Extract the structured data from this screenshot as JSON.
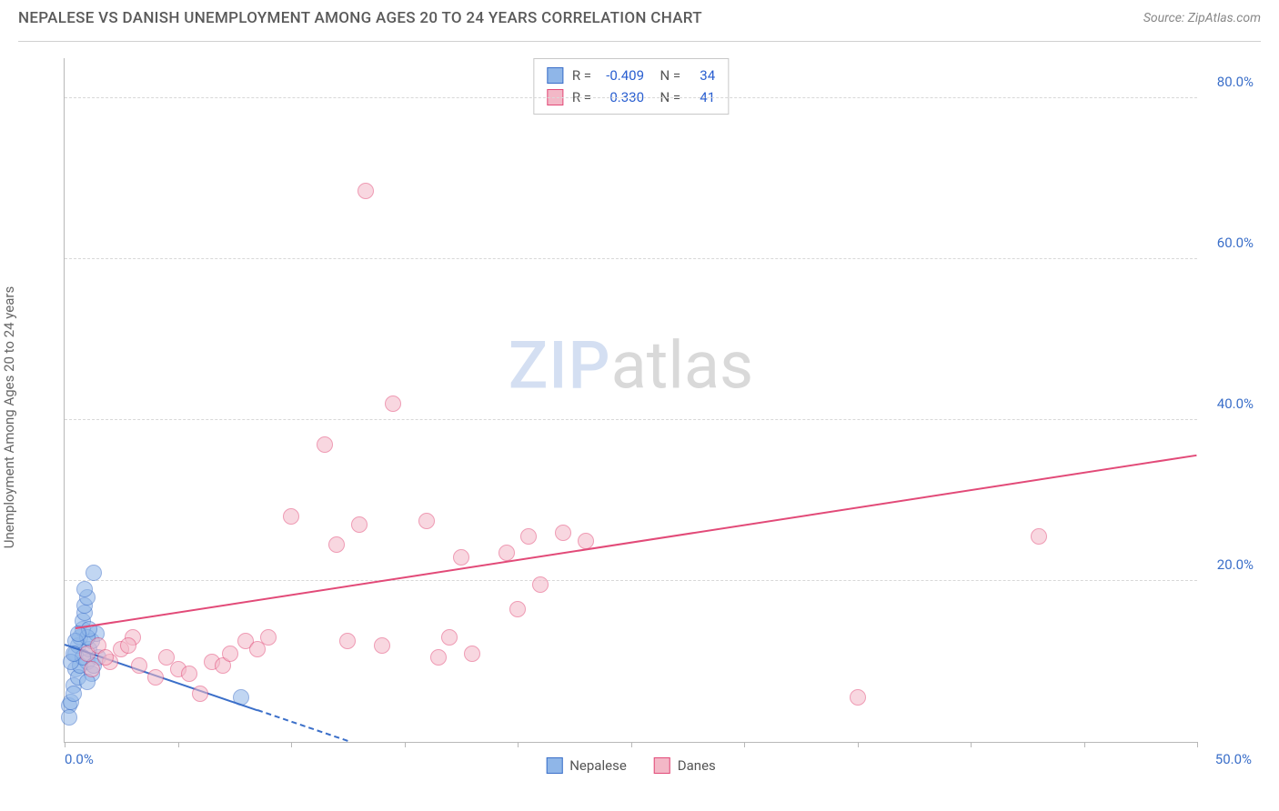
{
  "title": "NEPALESE VS DANISH UNEMPLOYMENT AMONG AGES 20 TO 24 YEARS CORRELATION CHART",
  "source": "Source: ZipAtlas.com",
  "ylabel": "Unemployment Among Ages 20 to 24 years",
  "watermark": {
    "bold": "ZIP",
    "rest": "atlas"
  },
  "chart": {
    "type": "scatter",
    "background_color": "#ffffff",
    "grid_color": "#d8d8d8",
    "axis_color": "#b8b8b8",
    "text_color": "#5a5a5a",
    "value_color": "#2a5fd0",
    "xlim": [
      0,
      50
    ],
    "ylim": [
      0,
      85
    ],
    "x_ticks": [
      0,
      5,
      10,
      15,
      20,
      25,
      30,
      35,
      40,
      45,
      50
    ],
    "x_tick_labels": {
      "0": "0.0%",
      "50": "50.0%"
    },
    "y_ticks": [
      20,
      40,
      60,
      80
    ],
    "y_tick_labels": {
      "20": "20.0%",
      "40": "40.0%",
      "60": "60.0%",
      "80": "80.0%"
    },
    "marker_radius": 9,
    "marker_opacity": 0.55,
    "line_width": 2,
    "series": [
      {
        "name": "Nepalese",
        "fill_color": "#8fb6e8",
        "stroke_color": "#3b6fc9",
        "R": "-0.409",
        "N": "34",
        "trend": {
          "x1": 0,
          "y1": 12.0,
          "x2": 12.5,
          "y2": 0,
          "dash_after_x": 8.5
        },
        "points": [
          [
            0.2,
            4.5
          ],
          [
            0.3,
            5.0
          ],
          [
            0.4,
            7.0
          ],
          [
            0.5,
            9.0
          ],
          [
            0.5,
            11.0
          ],
          [
            0.6,
            12.0
          ],
          [
            0.7,
            13.0
          ],
          [
            0.8,
            14.0
          ],
          [
            0.8,
            15.0
          ],
          [
            0.9,
            16.0
          ],
          [
            0.9,
            17.0
          ],
          [
            1.0,
            18.0
          ],
          [
            1.0,
            10.0
          ],
          [
            1.1,
            11.5
          ],
          [
            1.2,
            12.5
          ],
          [
            1.3,
            21.0
          ],
          [
            1.4,
            13.5
          ],
          [
            1.5,
            10.5
          ],
          [
            0.4,
            6.0
          ],
          [
            0.6,
            8.0
          ],
          [
            0.7,
            9.5
          ],
          [
            0.8,
            10.5
          ],
          [
            1.0,
            13.0
          ],
          [
            1.1,
            14.0
          ],
          [
            1.2,
            8.5
          ],
          [
            1.3,
            9.5
          ],
          [
            0.5,
            12.5
          ],
          [
            0.6,
            13.5
          ],
          [
            0.3,
            10.0
          ],
          [
            0.4,
            11.0
          ],
          [
            7.8,
            5.5
          ],
          [
            0.2,
            3.0
          ],
          [
            0.9,
            19.0
          ],
          [
            1.0,
            7.5
          ]
        ]
      },
      {
        "name": "Danes",
        "fill_color": "#f3b8c7",
        "stroke_color": "#e24a78",
        "R": "0.330",
        "N": "41",
        "trend": {
          "x1": 0.5,
          "y1": 14.0,
          "x2": 50,
          "y2": 35.5
        },
        "points": [
          [
            1.0,
            11.0
          ],
          [
            1.5,
            12.0
          ],
          [
            2.0,
            10.0
          ],
          [
            2.5,
            11.5
          ],
          [
            3.0,
            13.0
          ],
          [
            3.3,
            9.5
          ],
          [
            4.0,
            8.0
          ],
          [
            4.5,
            10.5
          ],
          [
            5.0,
            9.0
          ],
          [
            5.5,
            8.5
          ],
          [
            6.0,
            6.0
          ],
          [
            6.5,
            10.0
          ],
          [
            7.0,
            9.5
          ],
          [
            7.3,
            11.0
          ],
          [
            8.0,
            12.5
          ],
          [
            8.5,
            11.5
          ],
          [
            9.0,
            13.0
          ],
          [
            10.0,
            28.0
          ],
          [
            11.5,
            37.0
          ],
          [
            12.0,
            24.5
          ],
          [
            12.5,
            12.5
          ],
          [
            13.0,
            27.0
          ],
          [
            13.3,
            68.5
          ],
          [
            14.0,
            12.0
          ],
          [
            14.5,
            42.0
          ],
          [
            16.0,
            27.5
          ],
          [
            16.5,
            10.5
          ],
          [
            17.0,
            13.0
          ],
          [
            18.0,
            11.0
          ],
          [
            19.5,
            23.5
          ],
          [
            20.0,
            16.5
          ],
          [
            20.5,
            25.5
          ],
          [
            21.0,
            19.5
          ],
          [
            22.0,
            26.0
          ],
          [
            23.0,
            25.0
          ],
          [
            35.0,
            5.5
          ],
          [
            43.0,
            25.5
          ],
          [
            1.2,
            9.0
          ],
          [
            1.8,
            10.5
          ],
          [
            2.8,
            12.0
          ],
          [
            17.5,
            23.0
          ]
        ]
      }
    ],
    "legend": [
      {
        "label": "Nepalese",
        "fill": "#8fb6e8",
        "stroke": "#3b6fc9"
      },
      {
        "label": "Danes",
        "fill": "#f3b8c7",
        "stroke": "#e24a78"
      }
    ]
  }
}
